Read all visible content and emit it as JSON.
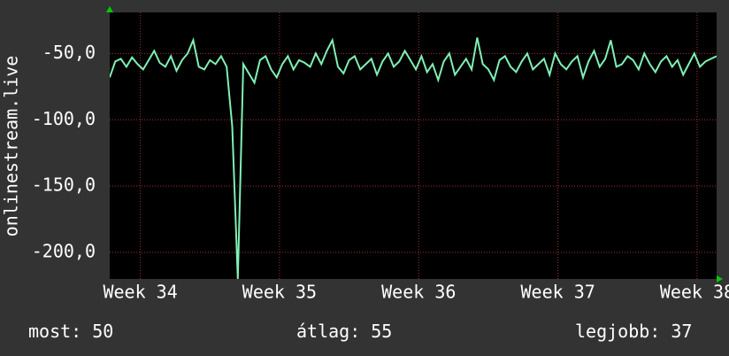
{
  "chart_data": {
    "type": "line",
    "y_label": "onlinestream.live",
    "xlim": [
      33.78,
      38.14
    ],
    "ylim": [
      -220,
      -19
    ],
    "xticks": [
      {
        "value": 34,
        "label": "Week 34"
      },
      {
        "value": 35,
        "label": "Week 35"
      },
      {
        "value": 36,
        "label": "Week 36"
      },
      {
        "value": 37,
        "label": "Week 37"
      },
      {
        "value": 38,
        "label": "Week 38"
      }
    ],
    "yticks": [
      {
        "value": -50,
        "label": "-50,0"
      },
      {
        "value": -100,
        "label": "-100,0"
      },
      {
        "value": -150,
        "label": "-150,0"
      },
      {
        "value": -200,
        "label": "-200,0"
      }
    ],
    "grid": true,
    "x": [
      33.78,
      33.82,
      33.86,
      33.9,
      33.94,
      33.98,
      34.02,
      34.06,
      34.1,
      34.14,
      34.18,
      34.22,
      34.26,
      34.3,
      34.34,
      34.38,
      34.42,
      34.46,
      34.5,
      34.54,
      34.58,
      34.62,
      34.66,
      34.7,
      34.74,
      34.78,
      34.82,
      34.86,
      34.9,
      34.94,
      34.98,
      35.02,
      35.06,
      35.1,
      35.14,
      35.18,
      35.22,
      35.26,
      35.3,
      35.34,
      35.38,
      35.42,
      35.46,
      35.5,
      35.54,
      35.58,
      35.62,
      35.66,
      35.7,
      35.74,
      35.78,
      35.82,
      35.86,
      35.9,
      35.94,
      35.98,
      36.02,
      36.06,
      36.1,
      36.14,
      36.18,
      36.22,
      36.26,
      36.3,
      36.34,
      36.38,
      36.42,
      36.46,
      36.5,
      36.54,
      36.58,
      36.62,
      36.66,
      36.7,
      36.74,
      36.78,
      36.82,
      36.86,
      36.9,
      36.94,
      36.98,
      37.02,
      37.06,
      37.1,
      37.14,
      37.18,
      37.22,
      37.26,
      37.3,
      37.34,
      37.38,
      37.42,
      37.46,
      37.5,
      37.54,
      37.58,
      37.62,
      37.66,
      37.7,
      37.74,
      37.78,
      37.82,
      37.86,
      37.9,
      37.94,
      37.98,
      38.02,
      38.06,
      38.1,
      38.14
    ],
    "series": [
      {
        "color": "#80f0b4",
        "values": [
          -68,
          -56,
          -54,
          -60,
          -53,
          -58,
          -62,
          -55,
          -48,
          -57,
          -60,
          -52,
          -63,
          -55,
          -50,
          -40,
          -60,
          -62,
          -55,
          -58,
          -52,
          -60,
          -105,
          -220,
          -58,
          -65,
          -72,
          -55,
          -52,
          -62,
          -68,
          -58,
          -52,
          -62,
          -55,
          -57,
          -60,
          -50,
          -58,
          -48,
          -40,
          -60,
          -65,
          -55,
          -52,
          -62,
          -58,
          -54,
          -66,
          -56,
          -50,
          -60,
          -56,
          -48,
          -55,
          -62,
          -52,
          -64,
          -58,
          -70,
          -56,
          -50,
          -66,
          -60,
          -54,
          -62,
          -38,
          -58,
          -62,
          -70,
          -55,
          -52,
          -60,
          -64,
          -56,
          -50,
          -62,
          -58,
          -54,
          -66,
          -50,
          -58,
          -62,
          -56,
          -52,
          -68,
          -56,
          -48,
          -60,
          -54,
          -40,
          -60,
          -58,
          -52,
          -55,
          -62,
          -50,
          -58,
          -64,
          -56,
          -52,
          -60,
          -55,
          -66,
          -58,
          -50,
          -60,
          -56,
          -54,
          -52
        ]
      }
    ],
    "stats": [
      {
        "label": "most:",
        "value": 50
      },
      {
        "label": "átlag:",
        "value": 55
      },
      {
        "label": "legjobb:",
        "value": 37
      }
    ]
  }
}
